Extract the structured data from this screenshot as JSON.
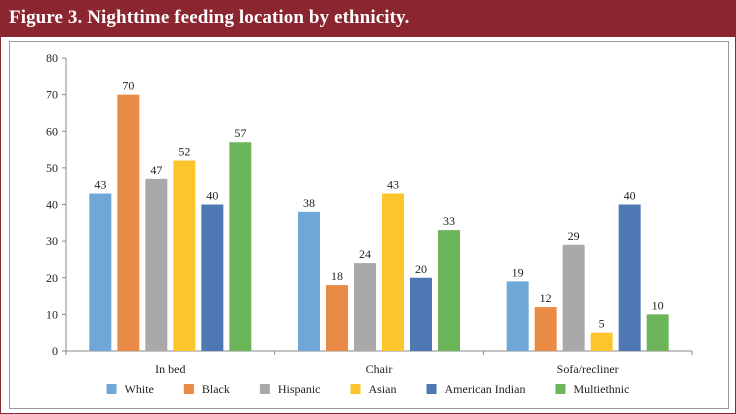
{
  "chart_data": {
    "type": "bar",
    "title": "Figure 3. Nighttime feeding location by ethnicity.",
    "xlabel": "",
    "ylabel": "",
    "ylim": [
      0,
      80
    ],
    "yticks": [
      0,
      10,
      20,
      30,
      40,
      50,
      60,
      70,
      80
    ],
    "categories": [
      "In bed",
      "Chair",
      "Sofa/recliner"
    ],
    "series": [
      {
        "name": "White",
        "color": "#6fa8d6",
        "values": [
          43,
          38,
          19
        ]
      },
      {
        "name": "Black",
        "color": "#ea8a47",
        "values": [
          70,
          18,
          12
        ]
      },
      {
        "name": "Hispanic",
        "color": "#a9a9a9",
        "values": [
          47,
          24,
          29
        ]
      },
      {
        "name": "Asian",
        "color": "#fcc52c",
        "values": [
          52,
          43,
          5
        ]
      },
      {
        "name": "American Indian",
        "color": "#4d78b3",
        "values": [
          40,
          20,
          40
        ]
      },
      {
        "name": "Multiethnic",
        "color": "#6db55a",
        "values": [
          57,
          33,
          10
        ]
      }
    ],
    "legend_position": "bottom",
    "grid": false
  }
}
